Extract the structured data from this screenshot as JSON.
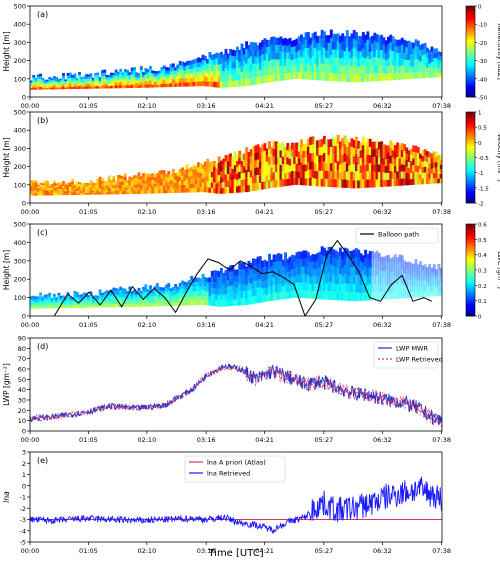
{
  "figure": {
    "xlabel": "Time [UTC]"
  },
  "chart_data": [
    {
      "id": "a",
      "type": "heatmap",
      "panel_label": "(a)",
      "ylabel": "Height [m]",
      "ylim": [
        0,
        500
      ],
      "yticks": [
        0,
        100,
        200,
        300,
        400,
        500
      ],
      "xticks": [
        "00:00",
        "01:05",
        "02:10",
        "03:16",
        "04:21",
        "05:27",
        "06:32",
        "07:38"
      ],
      "colorbar": {
        "label": "Reflectivity [dBZ]",
        "range": [
          -50,
          0
        ],
        "ticks": [
          0,
          -10,
          -20,
          -30,
          -40,
          -50
        ],
        "colormap": "jet-like"
      },
      "cloud_top_profile": {
        "t": [
          0,
          1,
          2,
          2.6,
          3.2,
          3.5,
          4.0,
          4.4,
          4.9,
          5.4,
          6.0,
          6.6,
          7.1,
          7.64
        ],
        "top_m": [
          110,
          120,
          150,
          170,
          220,
          240,
          290,
          320,
          330,
          360,
          350,
          330,
          300,
          260
        ],
        "base_m": [
          40,
          45,
          50,
          55,
          60,
          50,
          60,
          80,
          100,
          90,
          80,
          90,
          100,
          110
        ]
      }
    },
    {
      "id": "b",
      "type": "heatmap",
      "panel_label": "(b)",
      "ylabel": "Height [m]",
      "ylim": [
        0,
        500
      ],
      "yticks": [
        0,
        100,
        200,
        300,
        400,
        500
      ],
      "xticks": [
        "00:00",
        "01:05",
        "02:10",
        "03:16",
        "04:21",
        "05:27",
        "06:32",
        "07:38"
      ],
      "colorbar": {
        "label": "Velocity [ms⁻¹]",
        "range": [
          -2.0,
          1.0
        ],
        "ticks": [
          1.0,
          0.5,
          0.0,
          -0.5,
          -1.0,
          -1.5,
          -2.0
        ],
        "colormap": "jet-like"
      }
    },
    {
      "id": "c",
      "type": "heatmap",
      "panel_label": "(c)",
      "ylabel": "Height [m]",
      "ylim": [
        0,
        500
      ],
      "yticks": [
        0,
        100,
        200,
        300,
        400,
        500
      ],
      "xticks": [
        "00:00",
        "01:05",
        "02:10",
        "03:16",
        "04:21",
        "05:27",
        "06:32",
        "07:38"
      ],
      "colorbar": {
        "label": "LWC [gm⁻³]",
        "range": [
          0.0,
          0.6
        ],
        "ticks": [
          0.6,
          0.5,
          0.4,
          0.3,
          0.2,
          0.1,
          0.0
        ],
        "colormap": "jet-like"
      },
      "legend": [
        "Balloon path"
      ],
      "balloon_path": {
        "t": [
          0.45,
          0.7,
          0.9,
          1.1,
          1.3,
          1.5,
          1.7,
          1.9,
          2.1,
          2.3,
          2.5,
          2.7,
          2.9,
          3.1,
          3.3,
          3.5,
          3.7,
          3.9,
          4.1,
          4.3,
          4.5,
          4.7,
          4.9,
          5.1,
          5.3,
          5.5,
          5.7,
          5.9,
          6.1,
          6.3,
          6.5,
          6.7,
          6.9,
          7.1,
          7.3,
          7.45
        ],
        "height_m": [
          0,
          120,
          70,
          130,
          60,
          140,
          50,
          160,
          90,
          150,
          100,
          20,
          130,
          230,
          310,
          290,
          250,
          300,
          270,
          230,
          240,
          210,
          170,
          0,
          90,
          330,
          410,
          330,
          240,
          100,
          80,
          170,
          220,
          80,
          100,
          80
        ]
      }
    },
    {
      "id": "d",
      "type": "line",
      "panel_label": "(d)",
      "ylabel": "LWP [gm⁻²]",
      "ylim": [
        0,
        90
      ],
      "yticks": [
        0,
        10,
        20,
        30,
        40,
        50,
        60,
        70,
        80,
        90
      ],
      "xticks": [
        "00:00",
        "01:05",
        "02:10",
        "03:16",
        "04:21",
        "05:27",
        "06:32",
        "07:38"
      ],
      "series": [
        {
          "name": "LWP MWR",
          "color": "#1a33cc",
          "t": [
            0,
            0.5,
            1.0,
            1.5,
            2.0,
            2.5,
            3.0,
            3.3,
            3.6,
            3.9,
            4.2,
            4.5,
            4.8,
            5.1,
            5.4,
            5.7,
            6.0,
            6.3,
            6.6,
            6.9,
            7.2,
            7.5,
            7.64
          ],
          "values": [
            12,
            14,
            18,
            24,
            22,
            25,
            40,
            55,
            63,
            60,
            50,
            58,
            52,
            45,
            48,
            42,
            36,
            35,
            30,
            28,
            22,
            12,
            10
          ]
        },
        {
          "name": "LWP Retrieved",
          "color": "#d6336c",
          "t": [
            0,
            0.5,
            1.0,
            1.5,
            2.0,
            2.5,
            3.0,
            3.3,
            3.6,
            3.9,
            4.2,
            4.5,
            4.8,
            5.1,
            5.4,
            5.7,
            6.0,
            6.3,
            6.6,
            6.9,
            7.2,
            7.5,
            7.64
          ],
          "values": [
            12,
            14,
            18,
            24,
            22,
            25,
            40,
            55,
            62,
            60,
            50,
            57,
            52,
            45,
            48,
            42,
            36,
            35,
            30,
            28,
            22,
            12,
            10
          ]
        }
      ]
    },
    {
      "id": "e",
      "type": "line",
      "panel_label": "(e)",
      "ylabel": "lna",
      "ylim": [
        -5,
        3
      ],
      "yticks": [
        -5,
        -4,
        -3,
        -2,
        -1,
        0,
        1,
        2,
        3
      ],
      "xticks": [
        "00:00",
        "01:05",
        "02:10",
        "03:16",
        "04:21",
        "05:27",
        "06:32",
        "07:38"
      ],
      "series": [
        {
          "name": "lna A priori (Atlas)",
          "color": "#d6336c",
          "t": [
            0,
            7.64
          ],
          "values": [
            -3,
            -3
          ]
        },
        {
          "name": "lna Retrieved",
          "color": "#1a1aff",
          "t": [
            0,
            0.5,
            1.0,
            1.5,
            2.0,
            2.5,
            3.0,
            3.3,
            3.6,
            3.9,
            4.2,
            4.5,
            4.8,
            5.1,
            5.4,
            5.7,
            6.0,
            6.3,
            6.6,
            6.9,
            7.2,
            7.5,
            7.64
          ],
          "values": [
            -3.0,
            -3.1,
            -2.9,
            -3.0,
            -3.1,
            -3.0,
            -2.9,
            -3.0,
            -2.8,
            -3.3,
            -3.5,
            -3.9,
            -3.2,
            -2.8,
            -1.5,
            -2.2,
            -2.0,
            -1.6,
            -1.0,
            -0.6,
            -0.3,
            -0.8,
            -1.2
          ]
        }
      ]
    }
  ]
}
